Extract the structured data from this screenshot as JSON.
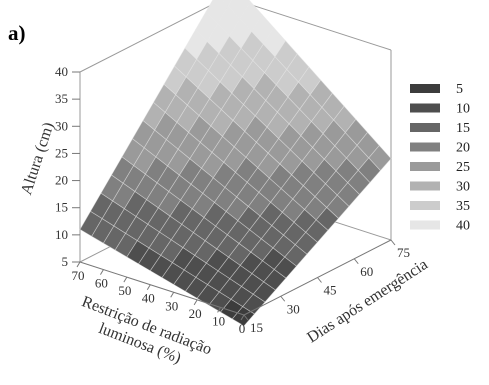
{
  "panel_label": "a)",
  "chart_data": {
    "type": "surface3d",
    "xlabel": "Restrição de radiação luminosa (%)",
    "ylabel": "Dias após emergência",
    "zlabel": "Altura (cm)",
    "x_ticks": [
      "0",
      "10",
      "20",
      "30",
      "40",
      "50",
      "60",
      "70"
    ],
    "y_ticks": [
      "15",
      "30",
      "45",
      "60",
      "75"
    ],
    "z_ticks": [
      "5",
      "10",
      "15",
      "20",
      "25",
      "30",
      "35",
      "40"
    ],
    "xlim": [
      0,
      70
    ],
    "ylim": [
      15,
      75
    ],
    "zlim": [
      5,
      40
    ],
    "surface_corners": [
      {
        "x": 0,
        "y": 15,
        "z": 3
      },
      {
        "x": 70,
        "y": 15,
        "z": 11
      },
      {
        "x": 0,
        "y": 75,
        "z": 20
      },
      {
        "x": 70,
        "y": 75,
        "z": 44
      }
    ],
    "contour_levels": [
      5,
      10,
      15,
      20,
      25,
      30,
      35,
      40
    ],
    "legend": [
      "5",
      "10",
      "15",
      "20",
      "25",
      "30",
      "35",
      "40"
    ],
    "legend_colors": [
      "#3c3c3c",
      "#4e4e4e",
      "#666666",
      "#808080",
      "#9a9a9a",
      "#b2b2b2",
      "#cccccc",
      "#e6e6e6"
    ],
    "legend_position": "right",
    "grid": true
  }
}
